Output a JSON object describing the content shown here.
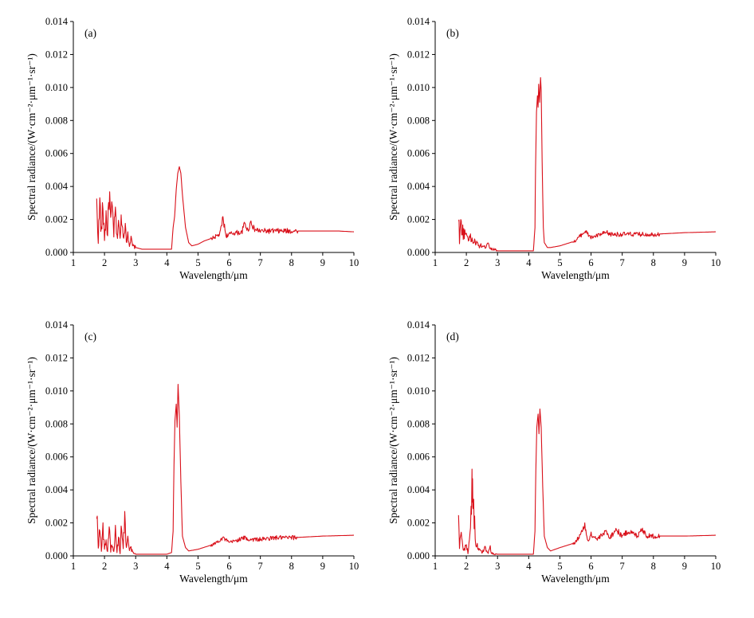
{
  "colors": {
    "series": "#d9101a",
    "axis": "#000000"
  },
  "chart_data": [
    {
      "type": "line",
      "label": "(a)",
      "xlabel": "Wavelength/μm",
      "ylabel": "Spectral radiance/(W·cm⁻²·μm⁻¹·sr⁻¹)",
      "xlim": [
        1,
        10
      ],
      "ylim": [
        0,
        0.014
      ],
      "xticks": [
        "1",
        "2",
        "3",
        "4",
        "5",
        "6",
        "7",
        "8",
        "9",
        "10"
      ],
      "yticks": [
        "0.000",
        "0.002",
        "0.004",
        "0.006",
        "0.008",
        "0.010",
        "0.012",
        "0.014"
      ],
      "series": [
        {
          "x": [
            1.75,
            1.8,
            1.85,
            1.9,
            1.95,
            2.0,
            2.05,
            2.1,
            2.15,
            2.2,
            2.25,
            2.3,
            2.35,
            2.4,
            2.45,
            2.5,
            2.55,
            2.6,
            2.65,
            2.7,
            2.75,
            2.8,
            2.85,
            2.9,
            3.0,
            3.2,
            3.5,
            3.8,
            4.0,
            4.15,
            4.2,
            4.25,
            4.3,
            4.35,
            4.4,
            4.45,
            4.5,
            4.6,
            4.7,
            4.8,
            5.0,
            5.2,
            5.5,
            5.7,
            5.8,
            5.9,
            6.0,
            6.2,
            6.4,
            6.5,
            6.6,
            6.7,
            6.8,
            7.0,
            7.5,
            8.0,
            8.5,
            9.0,
            9.5,
            10.0
          ],
          "y": [
            0.0028,
            0.0008,
            0.003,
            0.0012,
            0.0028,
            0.0009,
            0.0022,
            0.0011,
            0.0038,
            0.0018,
            0.0026,
            0.0012,
            0.0024,
            0.0008,
            0.0021,
            0.0007,
            0.0025,
            0.0009,
            0.0018,
            0.0007,
            0.0012,
            0.0005,
            0.0008,
            0.0004,
            0.0003,
            0.0002,
            0.0002,
            0.0002,
            0.0002,
            0.0002,
            0.0015,
            0.0022,
            0.0038,
            0.0048,
            0.0052,
            0.0048,
            0.0035,
            0.0015,
            0.0006,
            0.0004,
            0.0005,
            0.0007,
            0.0009,
            0.0011,
            0.0021,
            0.001,
            0.0011,
            0.0012,
            0.0012,
            0.0018,
            0.0013,
            0.0019,
            0.0014,
            0.0013,
            0.0013,
            0.0013,
            0.0013,
            0.0013,
            0.0013,
            0.00125
          ]
        }
      ]
    },
    {
      "type": "line",
      "label": "(b)",
      "xlabel": "Wavelength/μm",
      "ylabel": "Spectral radiance/(W·cm⁻²·μm⁻¹·sr⁻¹)",
      "xlim": [
        1,
        10
      ],
      "ylim": [
        0,
        0.014
      ],
      "xticks": [
        "1",
        "2",
        "3",
        "4",
        "5",
        "6",
        "7",
        "8",
        "9",
        "10"
      ],
      "yticks": [
        "0.000",
        "0.002",
        "0.004",
        "0.006",
        "0.008",
        "0.010",
        "0.012",
        "0.014"
      ],
      "series": [
        {
          "x": [
            1.75,
            1.78,
            1.82,
            1.9,
            2.0,
            2.1,
            2.2,
            2.3,
            2.4,
            2.5,
            2.6,
            2.7,
            2.75,
            2.8,
            2.9,
            3.0,
            3.2,
            3.5,
            3.8,
            4.0,
            4.15,
            4.2,
            4.22,
            4.25,
            4.28,
            4.3,
            4.32,
            4.35,
            4.38,
            4.4,
            4.43,
            4.47,
            4.5,
            4.6,
            4.7,
            5.0,
            5.5,
            5.8,
            6.0,
            6.5,
            6.6,
            7.0,
            7.5,
            8.0,
            9.0,
            10.0
          ],
          "y": [
            0.0024,
            0.0008,
            0.0017,
            0.0012,
            0.0011,
            0.0009,
            0.0007,
            0.0006,
            0.0004,
            0.0004,
            0.0003,
            0.0007,
            0.0003,
            0.0002,
            0.0002,
            0.0001,
            0.0001,
            0.0001,
            0.0001,
            0.0001,
            0.0001,
            0.0015,
            0.005,
            0.0085,
            0.0095,
            0.0088,
            0.0102,
            0.0091,
            0.0106,
            0.0098,
            0.0055,
            0.0015,
            0.0006,
            0.0003,
            0.0003,
            0.0004,
            0.0007,
            0.0013,
            0.0009,
            0.0012,
            0.0011,
            0.0011,
            0.0011,
            0.0011,
            0.0012,
            0.00125
          ]
        }
      ]
    },
    {
      "type": "line",
      "label": "(c)",
      "xlabel": "Wavelength/μm",
      "ylabel": "Spectral radiance/(W·cm⁻²·μm⁻¹·sr⁻¹)",
      "xlim": [
        1,
        10
      ],
      "ylim": [
        0,
        0.014
      ],
      "xticks": [
        "1",
        "2",
        "3",
        "4",
        "5",
        "6",
        "7",
        "8",
        "9",
        "10"
      ],
      "yticks": [
        "0.000",
        "0.002",
        "0.004",
        "0.006",
        "0.008",
        "0.010",
        "0.012",
        "0.014"
      ],
      "series": [
        {
          "x": [
            1.75,
            1.8,
            1.85,
            1.9,
            1.95,
            2.0,
            2.05,
            2.1,
            2.15,
            2.2,
            2.25,
            2.3,
            2.35,
            2.4,
            2.45,
            2.5,
            2.55,
            2.6,
            2.65,
            2.7,
            2.75,
            2.8,
            2.85,
            2.9,
            3.0,
            3.5,
            4.0,
            4.15,
            4.2,
            4.23,
            4.26,
            4.3,
            4.33,
            4.36,
            4.4,
            4.45,
            4.5,
            4.6,
            4.7,
            5.0,
            5.5,
            5.8,
            6.0,
            6.5,
            6.6,
            7.0,
            7.5,
            8.0,
            9.0,
            10.0
          ],
          "y": [
            0.0025,
            0.0005,
            0.0018,
            0.0004,
            0.0016,
            0.0004,
            0.0009,
            0.0002,
            0.0019,
            0.0003,
            0.0008,
            0.0002,
            0.0019,
            0.0002,
            0.0012,
            0.0001,
            0.0022,
            0.0004,
            0.0026,
            0.0004,
            0.0012,
            0.0003,
            0.0005,
            0.0002,
            0.0001,
            0.0001,
            0.0001,
            0.0002,
            0.0015,
            0.0055,
            0.0082,
            0.0092,
            0.0078,
            0.0104,
            0.0085,
            0.0045,
            0.0012,
            0.0005,
            0.0003,
            0.0004,
            0.0007,
            0.0011,
            0.0008,
            0.0011,
            0.001,
            0.001,
            0.0011,
            0.0011,
            0.0012,
            0.00125
          ]
        }
      ]
    },
    {
      "type": "line",
      "label": "(d)",
      "xlabel": "Wavelength/μm",
      "ylabel": "Spectral radiance/(W·cm⁻²·μm⁻¹·sr⁻¹)",
      "xlim": [
        1,
        10
      ],
      "ylim": [
        0,
        0.014
      ],
      "xticks": [
        "1",
        "2",
        "3",
        "4",
        "5",
        "6",
        "7",
        "8",
        "9",
        "10"
      ],
      "yticks": [
        "0.000",
        "0.002",
        "0.004",
        "0.006",
        "0.008",
        "0.010",
        "0.012",
        "0.014"
      ],
      "series": [
        {
          "x": [
            1.75,
            1.78,
            1.82,
            1.9,
            2.0,
            2.05,
            2.1,
            2.15,
            2.18,
            2.2,
            2.22,
            2.25,
            2.3,
            2.4,
            2.5,
            2.6,
            2.7,
            2.75,
            2.8,
            2.9,
            3.0,
            3.5,
            4.0,
            4.15,
            4.2,
            4.23,
            4.26,
            4.3,
            4.33,
            4.36,
            4.4,
            4.45,
            4.5,
            4.6,
            4.7,
            5.0,
            5.5,
            5.8,
            5.9,
            6.0,
            6.2,
            6.5,
            6.6,
            6.8,
            7.0,
            7.2,
            7.5,
            7.6,
            7.8,
            8.0,
            8.5,
            9.0,
            10.0
          ],
          "y": [
            0.0027,
            0.0005,
            0.0018,
            0.0003,
            0.0006,
            0.0002,
            0.0011,
            0.0024,
            0.0041,
            0.0044,
            0.0035,
            0.0024,
            0.0008,
            0.0004,
            0.0002,
            0.0005,
            0.0002,
            0.0006,
            0.0002,
            0.0001,
            0.0001,
            0.0001,
            0.0001,
            0.0001,
            0.0015,
            0.0052,
            0.0078,
            0.0086,
            0.0074,
            0.0089,
            0.0078,
            0.0042,
            0.0012,
            0.0005,
            0.0003,
            0.0005,
            0.0008,
            0.0018,
            0.0009,
            0.0013,
            0.001,
            0.0015,
            0.0011,
            0.0016,
            0.0012,
            0.0015,
            0.0012,
            0.0017,
            0.0012,
            0.0012,
            0.0012,
            0.0012,
            0.00125
          ]
        }
      ]
    }
  ]
}
